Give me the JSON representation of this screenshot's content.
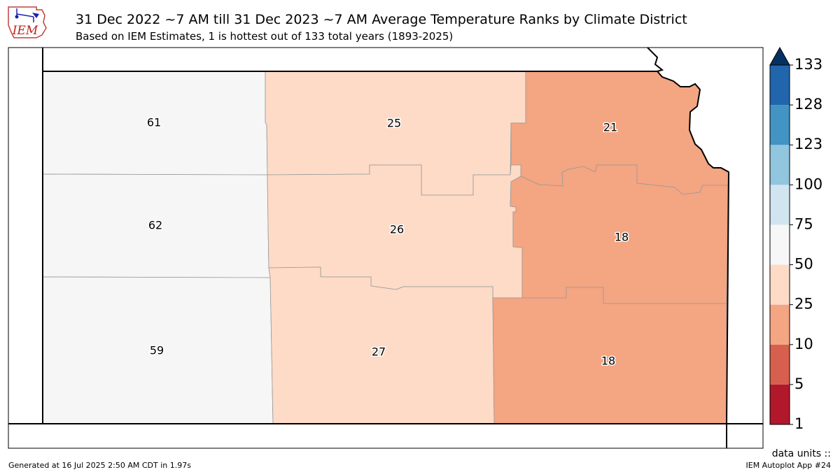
{
  "header": {
    "logo_text": "IEM",
    "title": "31 Dec 2022 ~7 AM till 31 Dec 2023 ~7 AM Average Temperature Ranks by Climate District",
    "subtitle": "Based on IEM Estimates, 1 is hottest out of 133 total years (1893-2025)"
  },
  "districts": [
    {
      "name": "northwest",
      "rank": "61",
      "color": "#f5f6f5"
    },
    {
      "name": "north-central",
      "rank": "25",
      "color": "#fddbc7"
    },
    {
      "name": "northeast",
      "rank": "21",
      "color": "#f4a582"
    },
    {
      "name": "west-central",
      "rank": "62",
      "color": "#f5f6f5"
    },
    {
      "name": "central",
      "rank": "26",
      "color": "#fddbc7"
    },
    {
      "name": "east-central",
      "rank": "18",
      "color": "#f4a582"
    },
    {
      "name": "southwest",
      "rank": "59",
      "color": "#f5f6f5"
    },
    {
      "name": "south-central",
      "rank": "27",
      "color": "#fddbc7"
    },
    {
      "name": "southeast",
      "rank": "18",
      "color": "#f4a582"
    }
  ],
  "colorbar": {
    "ticks": [
      "1",
      "5",
      "10",
      "25",
      "50",
      "75",
      "100",
      "123",
      "128",
      "133"
    ],
    "colors": [
      "#b2182b",
      "#d6604d",
      "#f4a582",
      "#fddbc7",
      "#f7f7f7",
      "#d1e5f0",
      "#92c5de",
      "#4393c3",
      "#2166ac"
    ],
    "extend_color": "#053061"
  },
  "footer": {
    "units": "data units ::",
    "app": "IEM Autoplot App #24",
    "generated": "Generated at 16 Jul 2025 2:50 AM CDT in 1.97s"
  }
}
